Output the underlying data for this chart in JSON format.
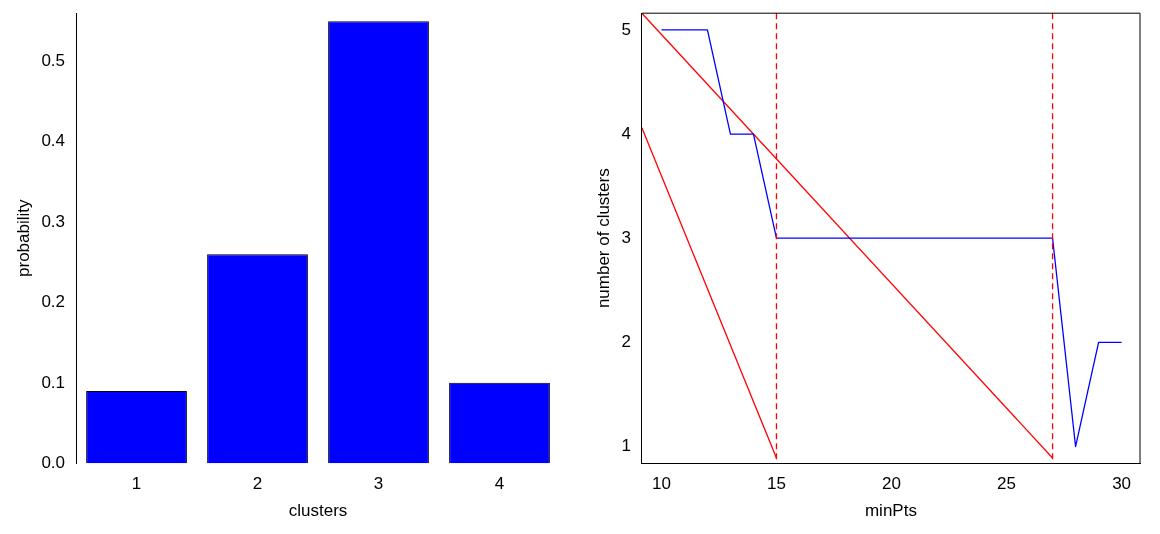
{
  "chart_data": [
    {
      "type": "bar",
      "xlabel": "clusters",
      "ylabel": "probability",
      "categories": [
        "1",
        "2",
        "3",
        "4"
      ],
      "values": [
        0.09,
        0.26,
        0.55,
        0.1
      ],
      "color": "#0000ff",
      "ylim": [
        0,
        0.56
      ],
      "yticks": [
        {
          "value": 0,
          "label": "0.0"
        },
        0.1,
        0.2,
        0.3,
        0.4,
        0.5
      ],
      "grid": false,
      "legend": false
    },
    {
      "type": "line",
      "xlabel": "minPts",
      "ylabel": "number of clusters",
      "xlim": [
        9.15,
        30.8
      ],
      "ylim": [
        0.84,
        5.16
      ],
      "xticks": [
        10,
        15,
        20,
        25,
        30
      ],
      "yticks": [
        1,
        2,
        3,
        4,
        5
      ],
      "grid": false,
      "legend": false,
      "marker": "none",
      "series": [
        {
          "color": "#0000ff",
          "x": [
            10,
            11,
            12,
            13,
            14,
            15,
            16,
            17,
            18,
            19,
            20,
            21,
            22,
            23,
            24,
            25,
            26,
            27,
            28,
            29,
            30
          ],
          "values": [
            5,
            5,
            5,
            4,
            4,
            3,
            3,
            3,
            3,
            3,
            3,
            3,
            3,
            3,
            3,
            3,
            3,
            3,
            1,
            2,
            2
          ]
        },
        {
          "color": "#ff0000",
          "x": [
            9.15,
            15
          ],
          "values": [
            4.06,
            0.89
          ]
        },
        {
          "color": "#ff0000",
          "x": [
            9.15,
            27
          ],
          "values": [
            5.16,
            0.89
          ]
        }
      ],
      "ref_lines": [
        {
          "axis": "x",
          "value": 15,
          "color": "#ff0000",
          "line_style": "dashed"
        },
        {
          "axis": "x",
          "value": 27,
          "color": "#ff0000",
          "line_style": "dashed"
        }
      ]
    }
  ]
}
